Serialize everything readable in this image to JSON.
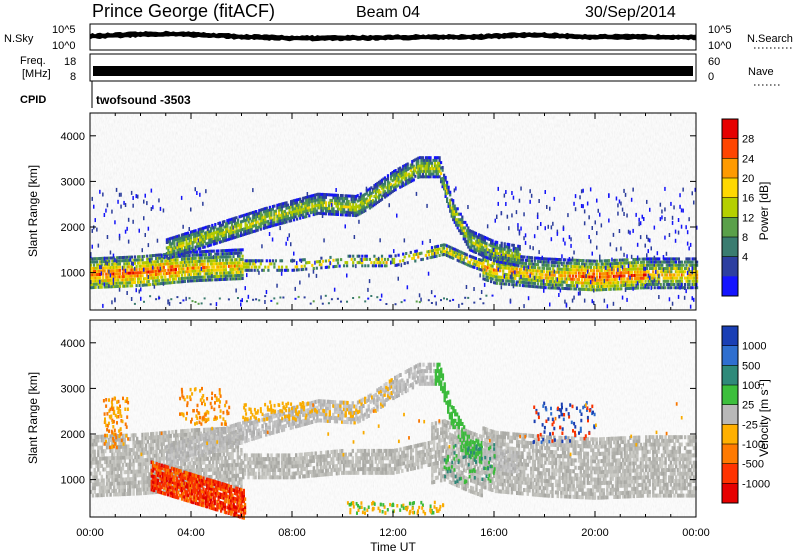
{
  "header": {
    "station": "Prince George (fitACF)",
    "beam": "Beam 04",
    "date": "30/Sep/2014"
  },
  "panels": {
    "nsky": {
      "left_label": "N.Sky",
      "right_label": "N.Search",
      "left_ticks": [
        "10^5",
        "10^0"
      ],
      "right_ticks": [
        "10^5",
        "10^0"
      ]
    },
    "freq": {
      "label_line1": "Freq.",
      "label_line2": "[MHz]",
      "left_ticks": [
        "18",
        "8"
      ],
      "right_ticks": [
        "60",
        "0"
      ],
      "right_label": "Nave"
    },
    "cpid": {
      "label": "CPID",
      "value": "twofsound  -3503"
    }
  },
  "chart_data": [
    {
      "type": "heatmap",
      "quantity": "Power",
      "ylabel": "Slant Range [km]",
      "yticks": [
        1000,
        2000,
        3000,
        4000
      ],
      "ylim": [
        180,
        4500
      ],
      "xlim_hours": [
        0,
        24
      ],
      "colorbar_label": "Power [dB]",
      "colorbar_ticks": [
        "28",
        "24",
        "20",
        "16",
        "12",
        "8",
        "4"
      ],
      "colorbar_colors": [
        "#e60000",
        "#ff4500",
        "#ff9a00",
        "#ffd800",
        "#b5d000",
        "#5aa04a",
        "#3a7c70",
        "#2d3fa0",
        "#1414ff"
      ],
      "features_km": {
        "lower_band": [
          [
            0,
            950
          ],
          [
            2,
            1000
          ],
          [
            4,
            1100
          ],
          [
            6,
            1150
          ],
          [
            8,
            1150
          ],
          [
            10,
            1250
          ],
          [
            12,
            1250
          ],
          [
            14,
            1500
          ],
          [
            15,
            1250
          ],
          [
            16,
            1050
          ],
          [
            18,
            950
          ],
          [
            20,
            900
          ],
          [
            22,
            950
          ],
          [
            24,
            950
          ]
        ],
        "upper_arc": [
          [
            3,
            1500
          ],
          [
            5,
            1850
          ],
          [
            7,
            2200
          ],
          [
            9,
            2500
          ],
          [
            10.5,
            2450
          ],
          [
            11,
            2600
          ],
          [
            12,
            3000
          ],
          [
            13,
            3300
          ],
          [
            13.8,
            3300
          ],
          [
            14.3,
            2400
          ],
          [
            15,
            1700
          ],
          [
            16,
            1450
          ],
          [
            17,
            1350
          ]
        ]
      }
    },
    {
      "type": "heatmap",
      "quantity": "Velocity",
      "ylabel": "Slant Range [km]",
      "yticks": [
        1000,
        2000,
        3000,
        4000
      ],
      "ylim": [
        180,
        4500
      ],
      "xlim_hours": [
        0,
        24
      ],
      "xticks": [
        "00:00",
        "04:00",
        "08:00",
        "12:00",
        "16:00",
        "20:00",
        "00:00"
      ],
      "xlabel": "Time UT",
      "colorbar_label": "Velocity [m s",
      "colorbar_label_sup": "-1",
      "colorbar_label_end": "]",
      "colorbar_ticks": [
        "1000",
        "500",
        "100",
        "25",
        "-25",
        "-100",
        "-500",
        "-1000"
      ],
      "colorbar_colors": [
        "#1a3fb5",
        "#2f6fd0",
        "#2f8a7a",
        "#3cbf3c",
        "#b8b8b8",
        "#ffb000",
        "#ff7a00",
        "#ff3300",
        "#e60000"
      ]
    }
  ]
}
